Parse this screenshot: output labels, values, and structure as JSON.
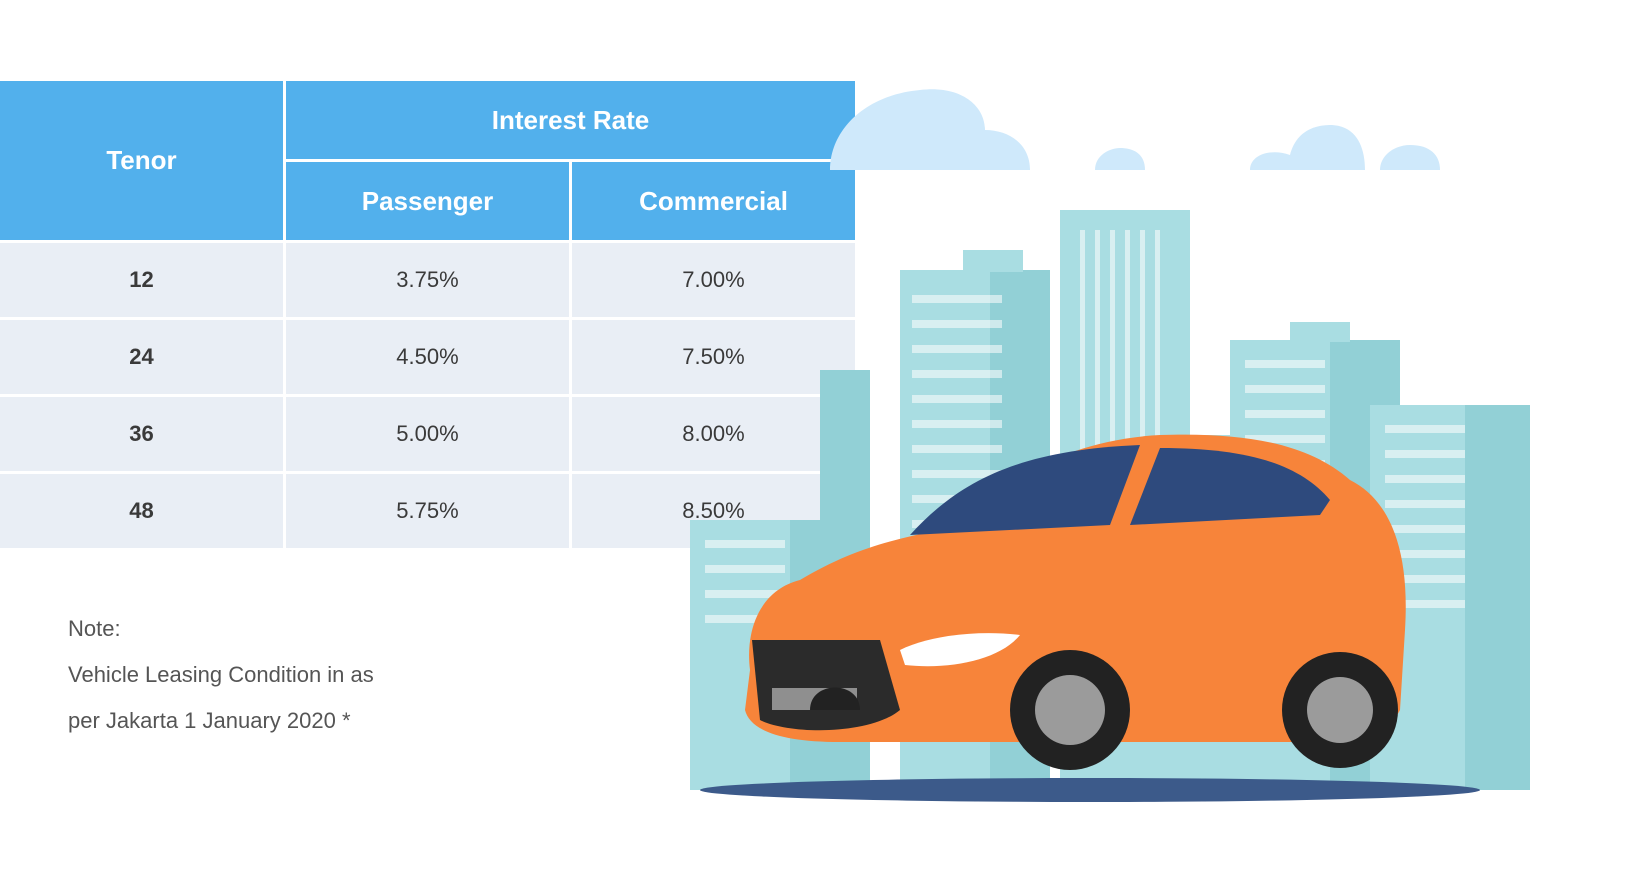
{
  "table": {
    "headers": {
      "tenor": "Tenor",
      "interest_rate": "Interest Rate",
      "passenger": "Passenger",
      "commercial": "Commercial"
    },
    "rows": [
      {
        "tenor": "12",
        "passenger": "3.75%",
        "commercial": "7.00%"
      },
      {
        "tenor": "24",
        "passenger": "4.50%",
        "commercial": "7.50%"
      },
      {
        "tenor": "36",
        "passenger": "5.00%",
        "commercial": "8.00%"
      },
      {
        "tenor": "48",
        "passenger": "5.75%",
        "commercial": "8.50%"
      }
    ]
  },
  "note": {
    "label": "Note:",
    "line1": "Vehicle Leasing Condition in as",
    "line2": "per Jakarta 1 January 2020 *"
  },
  "illustration": {
    "icon": "car-city-illustration",
    "car_color": "#f7843a",
    "building_color": "#a9dde2",
    "cloud_color": "#cfe9fb"
  }
}
